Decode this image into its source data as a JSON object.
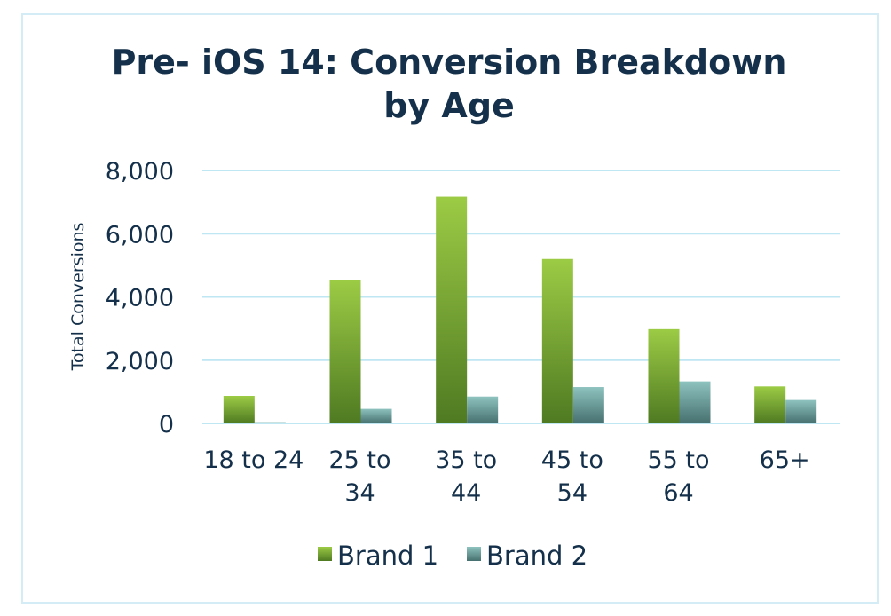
{
  "chart_data": {
    "type": "bar",
    "title_lines": [
      "Pre- iOS 14: Conversion Breakdown",
      "by Age"
    ],
    "xlabel": "",
    "ylabel": "Total Conversions",
    "ylim": [
      0,
      8000
    ],
    "yticks": [
      "8,000",
      "6,000",
      "4,000",
      "2,000",
      "0"
    ],
    "categories": [
      [
        "18 to 24"
      ],
      [
        "25 to",
        "34"
      ],
      [
        "35 to",
        "44"
      ],
      [
        "45 to",
        "54"
      ],
      [
        "55 to",
        "64"
      ],
      [
        "65+"
      ]
    ],
    "series": [
      {
        "name": "Brand 1",
        "values": [
          870,
          4530,
          7170,
          5200,
          2980,
          1170
        ]
      },
      {
        "name": "Brand 2",
        "values": [
          40,
          460,
          850,
          1150,
          1330,
          740
        ]
      }
    ],
    "grid": true,
    "legend_position": "bottom",
    "colors": {
      "brand1_top": "#9ccb45",
      "brand1_bottom": "#4f7a22",
      "brand2_top": "#8ec3bf",
      "brand2_bottom": "#46706f",
      "text": "#14304a",
      "grid": "#bfe6f3",
      "border": "#d3ecf5"
    }
  }
}
